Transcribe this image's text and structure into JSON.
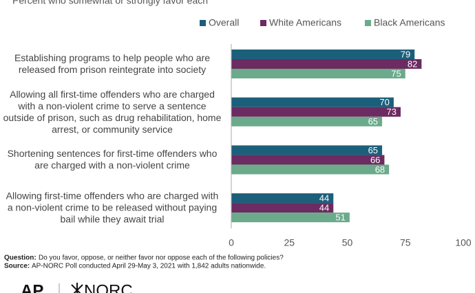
{
  "chart_data": {
    "type": "bar",
    "orientation": "horizontal",
    "subtitle": "Percent who somewhat or strongly favor each",
    "categories": [
      "Establishing programs to help people who are released from prison reintegrate into society",
      "Allowing all first-time offenders who are charged with a non-violent crime to serve a sentence outside of prison, such as drug rehabilitation, home arrest, or community service",
      "Shortening sentences for first-time offenders who are charged with a non-violent crime",
      "Allowing first-time offenders who are charged with a non-violent crime to be released without paying bail while they await trial"
    ],
    "series": [
      {
        "name": "Overall",
        "color": "#1b5f7b",
        "values": [
          79,
          70,
          65,
          44
        ]
      },
      {
        "name": "White Americans",
        "color": "#6c2b61",
        "values": [
          82,
          73,
          66,
          44
        ]
      },
      {
        "name": "Black Americans",
        "color": "#6bab8b",
        "values": [
          75,
          65,
          68,
          51
        ]
      }
    ],
    "xlim": [
      0,
      100
    ],
    "xticks": [
      0,
      25,
      50,
      75,
      100
    ],
    "grid": false,
    "legend": "top-right"
  },
  "footer": {
    "question_label": "Question:",
    "question": "Do you favor, oppose, or neither favor nor oppose each of the following policies?",
    "source_label": "Source:",
    "source": "AP-NORC Poll conducted April 29-May 3, 2021 with 1,842 adults nationwide."
  },
  "logos": {
    "ap": "AP",
    "norc": "NORC"
  }
}
